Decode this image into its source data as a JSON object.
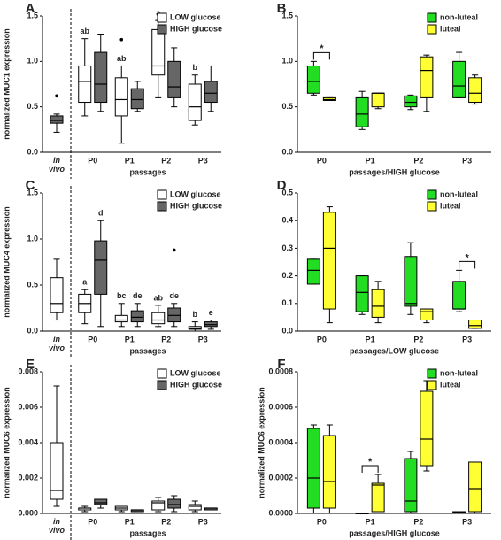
{
  "chart_data": [
    {
      "type": "box",
      "panel": "A",
      "ylabel": "normalized MUC1 expression",
      "xlabel": "passages",
      "legend": "upper right",
      "ylim": [
        0,
        1.5
      ],
      "yticks": [
        {
          "value": 0,
          "label": "0.0"
        },
        0.5,
        {
          "value": 1,
          "label": "1.0"
        },
        1.5
      ],
      "categories": [
        "P0",
        "P1",
        "P2",
        "P3"
      ],
      "reference": {
        "label": "in vivo",
        "color": "#666666",
        "values": [
          0.22,
          0.32,
          0.35,
          0.4,
          0.42
        ],
        "outliers": [
          0.62
        ]
      },
      "series": [
        {
          "name": "LOW glucose",
          "color": "#ffffff",
          "values": [
            [
              0.4,
              0.55,
              0.78,
              0.95,
              1.25
            ],
            [
              0.1,
              0.4,
              0.58,
              0.82,
              0.95
            ],
            [
              0.6,
              0.85,
              0.95,
              1.35,
              1.45
            ],
            [
              0.3,
              0.35,
              0.5,
              0.75,
              0.85
            ]
          ],
          "outliers": [
            [],
            [
              1.24
            ],
            [],
            []
          ],
          "letters": [
            "ab",
            "ab",
            "a",
            "b"
          ]
        },
        {
          "name": "HIGH glucose",
          "color": "#666666",
          "values": [
            [
              0.45,
              0.55,
              0.75,
              1.1,
              1.3
            ],
            [
              0.45,
              0.48,
              0.58,
              0.7,
              0.78
            ],
            [
              0.5,
              0.6,
              0.72,
              1.0,
              1.15
            ],
            [
              0.45,
              0.55,
              0.65,
              0.78,
              0.95
            ]
          ],
          "outliers": [
            [],
            [],
            [],
            []
          ]
        }
      ]
    },
    {
      "type": "box",
      "panel": "B",
      "xlabel": "passages/HIGH glucose",
      "legend": "upper right",
      "ylim": [
        0,
        1.5
      ],
      "yticks": [
        {
          "value": 0,
          "label": "0.0"
        },
        0.5,
        {
          "value": 1,
          "label": "1.0"
        },
        1.5
      ],
      "categories": [
        "P0",
        "P1",
        "P2",
        "P3"
      ],
      "series": [
        {
          "name": "non-luteal",
          "color": "#22dd22",
          "values": [
            [
              0.63,
              0.65,
              0.78,
              0.95,
              1.0
            ],
            [
              0.25,
              0.28,
              0.42,
              0.6,
              0.67
            ],
            [
              0.47,
              0.5,
              0.55,
              0.62,
              0.63
            ],
            [
              0.6,
              0.6,
              0.73,
              1.0,
              1.1
            ]
          ],
          "outliers": [
            [],
            [],
            [],
            []
          ]
        },
        {
          "name": "luteal",
          "color": "#ffff33",
          "values": [
            [
              0.57,
              0.57,
              0.58,
              0.6,
              0.6
            ],
            [
              0.48,
              0.5,
              0.65,
              0.65,
              0.65
            ],
            [
              0.45,
              0.6,
              0.9,
              1.05,
              1.07
            ],
            [
              0.53,
              0.55,
              0.65,
              0.82,
              0.85
            ]
          ],
          "outliers": [
            [],
            [],
            [],
            []
          ]
        }
      ],
      "annotations": [
        {
          "text": "*",
          "category": "P0"
        }
      ]
    },
    {
      "type": "box",
      "panel": "C",
      "ylabel": "normalized MUC4 expression",
      "xlabel": "passages",
      "legend": "upper right",
      "ylim": [
        0,
        1.5
      ],
      "yticks": [
        {
          "value": 0,
          "label": "0.0"
        },
        0.5,
        {
          "value": 1,
          "label": "1.0"
        },
        1.5
      ],
      "categories": [
        "P0",
        "P1",
        "P2",
        "P3"
      ],
      "reference": {
        "label": "in vivo",
        "color": "#ffffff",
        "values": [
          0.12,
          0.2,
          0.3,
          0.58,
          0.78
        ],
        "outliers": []
      },
      "series": [
        {
          "name": "LOW glucose",
          "color": "#ffffff",
          "values": [
            [
              0.08,
              0.2,
              0.3,
              0.4,
              0.45
            ],
            [
              0.05,
              0.1,
              0.12,
              0.17,
              0.3
            ],
            [
              0.05,
              0.08,
              0.12,
              0.2,
              0.28
            ],
            [
              0.0,
              0.02,
              0.03,
              0.05,
              0.1
            ]
          ],
          "outliers": [
            [],
            [],
            [],
            []
          ],
          "letters": [
            "a",
            "bc",
            "ab",
            "b"
          ]
        },
        {
          "name": "HIGH glucose",
          "color": "#666666",
          "values": [
            [
              0.05,
              0.4,
              0.77,
              0.98,
              1.2
            ],
            [
              0.05,
              0.1,
              0.15,
              0.22,
              0.3
            ],
            [
              0.05,
              0.1,
              0.17,
              0.25,
              0.3
            ],
            [
              0.02,
              0.05,
              0.07,
              0.1,
              0.12
            ]
          ],
          "outliers": [
            [],
            [],
            [
              0.88
            ],
            []
          ],
          "letters": [
            "d",
            "de",
            "de",
            "e"
          ]
        }
      ]
    },
    {
      "type": "box",
      "panel": "D",
      "xlabel": "passages/LOW glucose",
      "legend": "upper right",
      "ylim": [
        0,
        0.5
      ],
      "yticks": [
        {
          "value": 0,
          "label": "0.0"
        },
        0.1,
        0.2,
        0.3,
        0.4,
        0.5
      ],
      "categories": [
        "P0",
        "P1",
        "P2",
        "P3"
      ],
      "series": [
        {
          "name": "non-luteal",
          "color": "#22dd22",
          "values": [
            [
              0.17,
              0.17,
              0.22,
              0.26,
              0.26
            ],
            [
              0.06,
              0.07,
              0.14,
              0.2,
              0.2
            ],
            [
              0.06,
              0.09,
              0.1,
              0.27,
              0.32
            ],
            [
              0.07,
              0.08,
              0.08,
              0.18,
              0.22
            ]
          ],
          "outliers": [
            [],
            [],
            [],
            []
          ]
        },
        {
          "name": "luteal",
          "color": "#ffff33",
          "values": [
            [
              0.03,
              0.08,
              0.3,
              0.43,
              0.45
            ],
            [
              0.03,
              0.05,
              0.09,
              0.15,
              0.18
            ],
            [
              0.03,
              0.04,
              0.07,
              0.08,
              0.08
            ],
            [
              0.01,
              0.01,
              0.02,
              0.04,
              0.04
            ]
          ],
          "outliers": [
            [],
            [],
            [],
            []
          ]
        }
      ],
      "annotations": [
        {
          "text": "*",
          "category": "P3"
        }
      ]
    },
    {
      "type": "box",
      "panel": "E",
      "ylabel": "normalized MUC6 expression",
      "xlabel": "passages",
      "legend": "upper right",
      "ylim": [
        0,
        0.008
      ],
      "yticks": [
        {
          "value": 0,
          "label": "0.000"
        },
        0.002,
        0.004,
        0.006,
        0.008
      ],
      "categories": [
        "P0",
        "P1",
        "P2",
        "P3"
      ],
      "reference": {
        "label": "in vivo",
        "color": "#ffffff",
        "values": [
          0.0004,
          0.0008,
          0.0013,
          0.004,
          0.0072
        ],
        "outliers": []
      },
      "series": [
        {
          "name": "LOW glucose",
          "color": "#ffffff",
          "values": [
            [
              0.0001,
              0.0002,
              0.0003,
              0.0003,
              0.0004
            ],
            [
              0.0001,
              0.0002,
              0.0003,
              0.0004,
              0.0004
            ],
            [
              0.0001,
              0.0002,
              0.0006,
              0.0007,
              0.0009
            ],
            [
              0.0001,
              0.0002,
              0.0004,
              0.0005,
              0.0007
            ]
          ],
          "outliers": [
            [],
            [],
            [],
            []
          ]
        },
        {
          "name": "HIGH glucose",
          "color": "#666666",
          "values": [
            [
              0.0003,
              0.0005,
              0.0006,
              0.0008,
              0.0008
            ],
            [
              0.0001,
              0.0001,
              0.0002,
              0.0002,
              0.0002
            ],
            [
              0.0001,
              0.0003,
              0.0005,
              0.0008,
              0.001
            ],
            [
              0.0002,
              0.0002,
              0.0003,
              0.0003,
              0.0003
            ]
          ],
          "outliers": [
            [],
            [],
            [],
            []
          ]
        }
      ]
    },
    {
      "type": "box",
      "panel": "F",
      "ylabel": "normalized MUC6 expression",
      "xlabel": "passages/HIGH glucose",
      "legend": "upper right",
      "ylim": [
        0,
        0.0008
      ],
      "yticks": [
        {
          "value": 0,
          "label": "0.0000"
        },
        0.0002,
        0.0004,
        0.0006,
        0.0008
      ],
      "categories": [
        "P0",
        "P1",
        "P2",
        "P3"
      ],
      "series": [
        {
          "name": "non-luteal",
          "color": "#22dd22",
          "values": [
            [
              0,
              3e-05,
              0.0002,
              0.00048,
              0.0005
            ],
            [
              0,
              0,
              0,
              0,
              0
            ],
            [
              0,
              1e-05,
              7e-05,
              0.00031,
              0.00035
            ],
            [
              0,
              0,
              5e-06,
              1e-05,
              1e-05
            ]
          ],
          "outliers": [
            [],
            [],
            [],
            []
          ]
        },
        {
          "name": "luteal",
          "color": "#ffff33",
          "values": [
            [
              0,
              3e-05,
              0.00018,
              0.00044,
              0.0005
            ],
            [
              1e-05,
              1e-05,
              0.00016,
              0.00017,
              0.00022
            ],
            [
              0.00024,
              0.00027,
              0.00042,
              0.00069,
              0.00075
            ],
            [
              0,
              1e-05,
              0.00014,
              0.00029,
              0.00029
            ]
          ],
          "outliers": [
            [],
            [],
            [],
            []
          ]
        }
      ],
      "annotations": [
        {
          "text": "*",
          "category": "P1"
        }
      ]
    }
  ]
}
